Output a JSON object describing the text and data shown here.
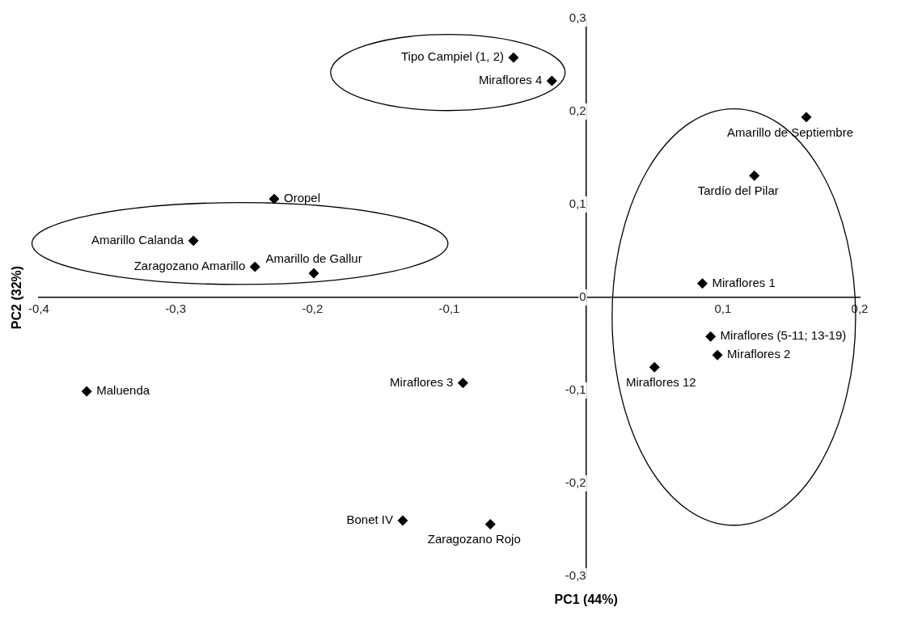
{
  "chart_data": {
    "type": "scatter",
    "xlabel": "PC1 (44%)",
    "ylabel": "PC2 (32%)",
    "x": [
      -0.053,
      -0.025,
      0.161,
      0.123,
      -0.228,
      -0.287,
      -0.242,
      -0.199,
      0.085,
      0.091,
      0.096,
      0.05,
      -0.09,
      -0.365,
      -0.134,
      -0.07
    ],
    "series": [
      {
        "color": "#000000",
        "values": [
          0.258,
          0.233,
          0.194,
          0.131,
          0.106,
          0.061,
          0.033,
          0.026,
          0.015,
          -0.042,
          -0.062,
          -0.075,
          -0.092,
          -0.101,
          -0.24,
          -0.244
        ]
      }
    ],
    "marker": "diamond",
    "grid": false,
    "legend": false,
    "xlim": [
      -0.4,
      0.2
    ],
    "ylim": [
      -0.3,
      0.3
    ],
    "xticks": [
      {
        "value": -0.4,
        "label": "-0,4"
      },
      {
        "value": -0.3,
        "label": "-0,3"
      },
      {
        "value": -0.2,
        "label": "-0,2"
      },
      {
        "value": -0.1,
        "label": "-0,1"
      },
      {
        "value": 0.1,
        "label": "0,1"
      },
      {
        "value": 0.2,
        "label": "0,2"
      }
    ],
    "yticks": [
      {
        "value": -0.3,
        "label": "-0,3"
      },
      {
        "value": -0.2,
        "label": "-0,2"
      },
      {
        "value": -0.1,
        "label": "-0,1"
      },
      0,
      {
        "value": 0.1,
        "label": "0,1"
      },
      {
        "value": 0.2,
        "label": "0,2"
      },
      {
        "value": 0.3,
        "label": "0,3"
      }
    ],
    "annotations": [
      {
        "text": "Tipo Campiel (1, 2)",
        "x": -0.053,
        "y": 0.258
      },
      {
        "text": "Miraflores 4",
        "x": -0.025,
        "y": 0.233
      },
      {
        "text": "Amarillo de Septiembre",
        "x": 0.161,
        "y": 0.194
      },
      {
        "text": "Tardío del Pilar",
        "x": 0.123,
        "y": 0.131
      },
      {
        "text": "Oropel",
        "x": -0.228,
        "y": 0.106
      },
      {
        "text": "Amarillo Calanda",
        "x": -0.287,
        "y": 0.061
      },
      {
        "text": "Zaragozano Amarillo",
        "x": -0.242,
        "y": 0.033
      },
      {
        "text": "Amarillo de Gallur",
        "x": -0.199,
        "y": 0.026
      },
      {
        "text": "Miraflores 1",
        "x": 0.085,
        "y": 0.015
      },
      {
        "text": "Miraflores (5-11; 13-19)",
        "x": 0.091,
        "y": -0.042
      },
      {
        "text": "Miraflores 2",
        "x": 0.096,
        "y": -0.062
      },
      {
        "text": "Miraflores 12",
        "x": 0.05,
        "y": -0.075
      },
      {
        "text": "Miraflores 3",
        "x": -0.09,
        "y": -0.092
      },
      {
        "text": "Maluenda",
        "x": -0.365,
        "y": -0.101
      },
      {
        "text": "Bonet IV",
        "x": -0.134,
        "y": -0.24
      },
      {
        "text": "Zaragozano Rojo",
        "x": -0.07,
        "y": -0.244
      }
    ]
  }
}
